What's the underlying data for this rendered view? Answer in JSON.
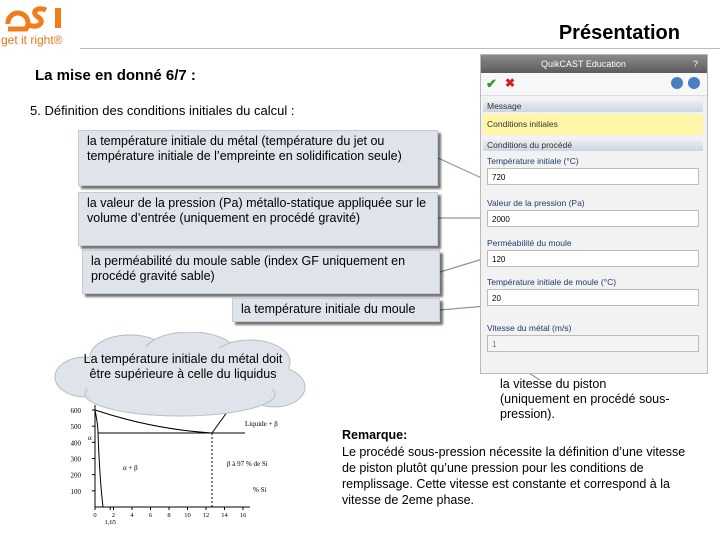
{
  "header": {
    "tagline": "get it right®",
    "title": "Présentation"
  },
  "subtitle": "La mise en donné 6/7 :",
  "step": "5. Définition des conditions initiales du calcul :",
  "callouts": [
    "la température initiale du métal (température du jet ou température initiale de l’empreinte en solidification seule)",
    "la valeur de la pression (Pa) métallo-statique appliquée sur le volume d’entrée (uniquement en procédé gravité)",
    "la perméabilité du moule sable (index GF uniquement en procédé gravité sable)",
    "la température initiale du moule"
  ],
  "panel": {
    "title": "QuikCAST Education",
    "help": "?",
    "message_header": "Message",
    "message": "Conditions initiales",
    "section": "Conditions du procédé",
    "fields": [
      {
        "label": "Température initiale (°C)",
        "value": "720"
      },
      {
        "label": "Valeur de la pression (Pa)",
        "value": "2000"
      },
      {
        "label": "Perméabilité du moule",
        "value": "120"
      },
      {
        "label": "Température initiale de moule (°C)",
        "value": "20"
      },
      {
        "label": "Vitesse du métal (m/s)",
        "value": "1"
      }
    ]
  },
  "cloud": "La température initiale du métal doit être supérieure à celle du liquidus",
  "piston_callout": "la vitesse du piston (uniquement en procédé sous-pression).",
  "remark": {
    "title": "Remarque:",
    "text": "Le procédé sous-pression nécessite la définition d’une vitesse de piston plutôt qu’une pression pour les conditions de remplissage. Cette vitesse est constante et correspond à la vitesse de 2eme phase."
  },
  "phase_diagram": {
    "xlim": [
      0,
      16
    ],
    "ylim": [
      0,
      600
    ],
    "xticks": [
      0,
      {
        "value": 1.65,
        "label": "1,65"
      },
      2,
      4,
      6,
      8,
      10,
      12,
      14,
      16
    ],
    "yticks": [
      100,
      200,
      300,
      400,
      500,
      600
    ],
    "labels": [
      "Liquide",
      "Liquide + β",
      "α + β",
      "β à 97 % de Si",
      "% Si",
      "α"
    ]
  }
}
